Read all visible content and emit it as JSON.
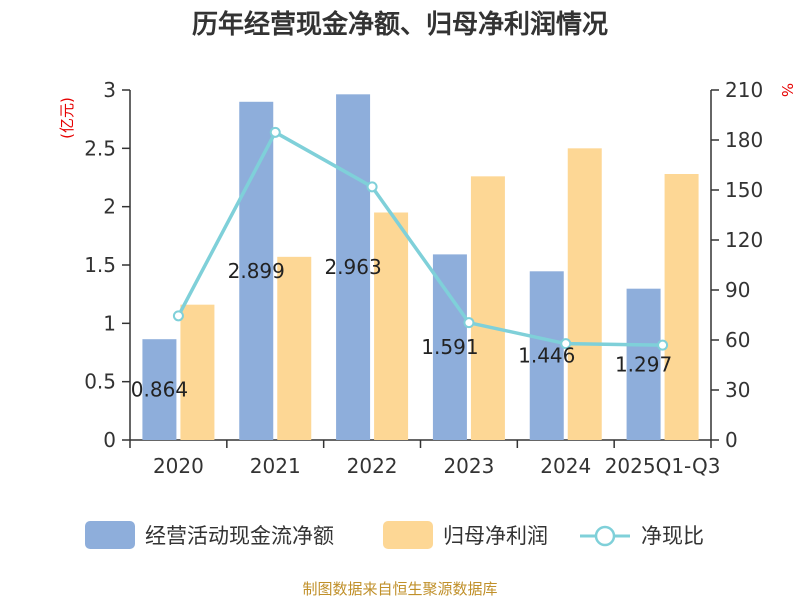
{
  "chart_data": {
    "type": "bar",
    "title": "历年经营现金净额、归母净利润情况",
    "categories": [
      "2020",
      "2021",
      "2022",
      "2023",
      "2024",
      "2025Q1-Q3"
    ],
    "series": [
      {
        "name": "经营活动现金流净额",
        "type": "bar",
        "axis": "left",
        "color": "#8eaedb",
        "values": [
          0.864,
          2.899,
          2.963,
          1.591,
          1.446,
          1.297
        ],
        "labels": [
          "0.864",
          "2.899",
          "2.963",
          "1.591",
          "1.446",
          "1.297"
        ]
      },
      {
        "name": "归母净利润",
        "type": "bar",
        "axis": "left",
        "color": "#fdd795",
        "values": [
          1.16,
          1.57,
          1.95,
          2.26,
          2.5,
          2.28
        ]
      },
      {
        "name": "净现比",
        "type": "line",
        "axis": "right",
        "color": "#7fd0d9",
        "values": [
          74.5,
          184.6,
          151.9,
          70.4,
          57.8,
          56.9
        ]
      }
    ],
    "y_left": {
      "unit": "(亿元)",
      "ylim": [
        0,
        3
      ],
      "ticks": [
        "0",
        "0.5",
        "1",
        "1.5",
        "2",
        "2.5",
        "3"
      ]
    },
    "y_right": {
      "unit": "%",
      "ylim": [
        0,
        210
      ],
      "ticks": [
        "0",
        "30",
        "60",
        "90",
        "120",
        "150",
        "180",
        "210"
      ]
    },
    "legend_position": "bottom",
    "source": "制图数据来自恒生聚源数据库"
  }
}
